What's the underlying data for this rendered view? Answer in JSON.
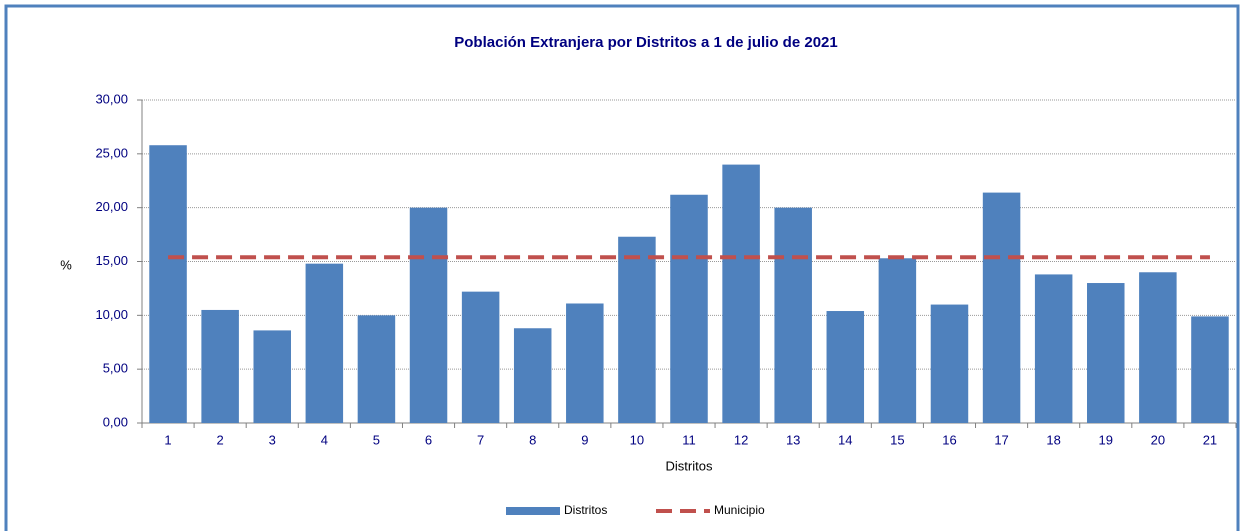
{
  "chart_data": {
    "type": "bar",
    "title": "Población Extranjera por Distritos a 1 de julio de 2021",
    "x_label": "Distritos",
    "y_label": "%",
    "categories": [
      "1",
      "2",
      "3",
      "4",
      "5",
      "6",
      "7",
      "8",
      "9",
      "10",
      "11",
      "12",
      "13",
      "14",
      "15",
      "16",
      "17",
      "18",
      "19",
      "20",
      "21"
    ],
    "series": [
      {
        "name": "Distritos",
        "type": "bar",
        "color": "#4f81bd",
        "values": [
          25.8,
          10.5,
          8.6,
          14.8,
          10.0,
          20.0,
          12.2,
          8.8,
          11.1,
          17.3,
          21.2,
          24.0,
          20.0,
          10.4,
          15.3,
          11.0,
          21.4,
          13.8,
          13.0,
          14.0,
          9.9
        ]
      },
      {
        "name": "Municipio",
        "type": "line",
        "dashed": true,
        "color": "#c0504d",
        "values": [
          15.4,
          15.4,
          15.4,
          15.4,
          15.4,
          15.4,
          15.4,
          15.4,
          15.4,
          15.4,
          15.4,
          15.4,
          15.4,
          15.4,
          15.4,
          15.4,
          15.4,
          15.4,
          15.4,
          15.4,
          15.4
        ]
      }
    ],
    "ylim": [
      0,
      30
    ],
    "yticks": [
      {
        "value": 0,
        "label": "0,00"
      },
      {
        "value": 5,
        "label": "5,00"
      },
      {
        "value": 10,
        "label": "10,00"
      },
      {
        "value": 15,
        "label": "15,00"
      },
      {
        "value": 20,
        "label": "20,00"
      },
      {
        "value": 25,
        "label": "25,00"
      },
      {
        "value": 30,
        "label": "30,00"
      }
    ],
    "grid": true,
    "legend": "bottom"
  }
}
